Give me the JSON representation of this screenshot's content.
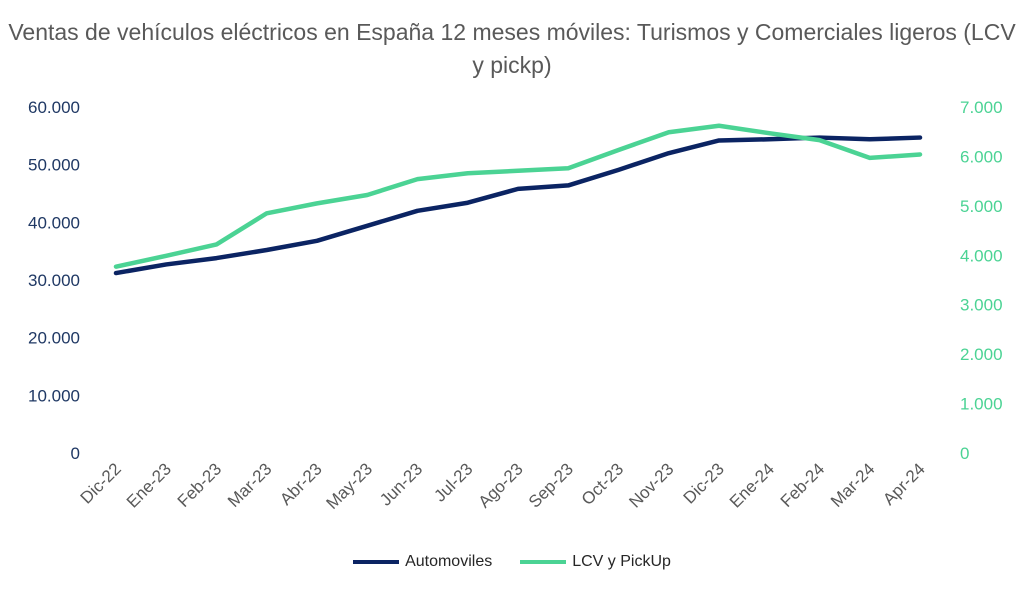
{
  "chart_data": {
    "type": "line",
    "title": "Ventas de vehículos eléctricos en España 12 meses móviles: Turismos y Comerciales ligeros (LCV y pickp)",
    "categories": [
      "Dic-22",
      "Ene-23",
      "Feb-23",
      "Mar-23",
      "Abr-23",
      "May-23",
      "Jun-23",
      "Jul-23",
      "Ago-23",
      "Sep-23",
      "Oct-23",
      "Nov-23",
      "Dic-23",
      "Ene-24",
      "Feb-24",
      "Mar-24",
      "Apr-24"
    ],
    "y_left": {
      "range": [
        0,
        60000
      ],
      "ticks": [
        "0",
        "10.000",
        "20.000",
        "30.000",
        "40.000",
        "50.000",
        "60.000"
      ],
      "color": "#1F3864"
    },
    "y_right": {
      "range": [
        0,
        7000
      ],
      "ticks": [
        "0",
        "1.000",
        "2.000",
        "3.000",
        "4.000",
        "5.000",
        "6.000",
        "7.000"
      ],
      "color": "#4BD394"
    },
    "grid": false,
    "legend_position": "bottom",
    "series": [
      {
        "name": "Automoviles",
        "axis": "left",
        "color": "#0B2463",
        "values": [
          31200,
          32700,
          33800,
          35200,
          36800,
          39400,
          42000,
          43400,
          45800,
          46400,
          49100,
          52000,
          54200,
          54400,
          54700,
          54400,
          54700
        ]
      },
      {
        "name": "LCV y PickUp",
        "axis": "right",
        "color": "#4BD394",
        "values": [
          3770,
          3990,
          4220,
          4850,
          5050,
          5220,
          5540,
          5660,
          5710,
          5760,
          6130,
          6490,
          6620,
          6470,
          6330,
          5970,
          6040
        ]
      }
    ]
  }
}
